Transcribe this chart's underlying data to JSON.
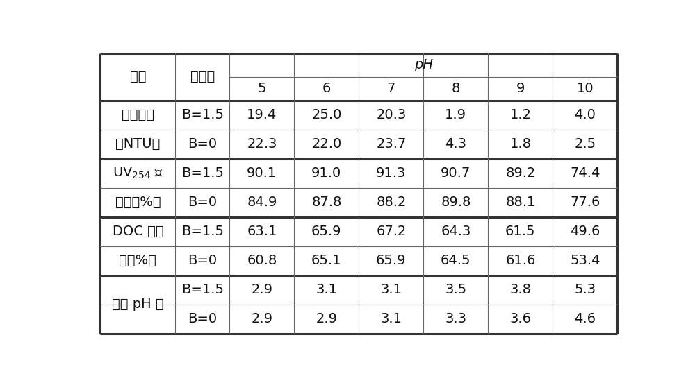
{
  "title_row": "pH",
  "col_header_label1": "指标",
  "col_header_label2": "絮凝剂",
  "ph_values": [
    "5",
    "6",
    "7",
    "8",
    "9",
    "10"
  ],
  "row_groups": [
    {
      "indicator_line1": "剩余浊度",
      "indicator_line2": "（NTU）",
      "uv_special": false,
      "rows": [
        {
          "coag": "B=1.5",
          "values": [
            "19.4",
            "25.0",
            "20.3",
            "1.9",
            "1.2",
            "4.0"
          ]
        },
        {
          "coag": "B=0",
          "values": [
            "22.3",
            "22.0",
            "23.7",
            "4.3",
            "1.8",
            "2.5"
          ]
        }
      ]
    },
    {
      "indicator_line1": "UV",
      "indicator_line1_sub": "254",
      "indicator_line1_suffix": " 去",
      "indicator_line2": "除率（%）",
      "uv_special": true,
      "rows": [
        {
          "coag": "B=1.5",
          "values": [
            "90.1",
            "91.0",
            "91.3",
            "90.7",
            "89.2",
            "74.4"
          ]
        },
        {
          "coag": "B=0",
          "values": [
            "84.9",
            "87.8",
            "88.2",
            "89.8",
            "88.1",
            "77.6"
          ]
        }
      ]
    },
    {
      "indicator_line1": "DOC 去除",
      "indicator_line2": "率（%）",
      "uv_special": false,
      "rows": [
        {
          "coag": "B=1.5",
          "values": [
            "63.1",
            "65.9",
            "67.2",
            "64.3",
            "61.5",
            "49.6"
          ]
        },
        {
          "coag": "B=0",
          "values": [
            "60.8",
            "65.1",
            "65.9",
            "64.5",
            "61.6",
            "53.4"
          ]
        }
      ]
    },
    {
      "indicator_line1": "出水 pH 值",
      "indicator_line2": "",
      "uv_special": false,
      "rows": [
        {
          "coag": "B=1.5",
          "values": [
            "2.9",
            "3.1",
            "3.1",
            "3.5",
            "3.8",
            "5.3"
          ]
        },
        {
          "coag": "B=0",
          "values": [
            "2.9",
            "2.9",
            "3.1",
            "3.3",
            "3.6",
            "4.6"
          ]
        }
      ]
    }
  ],
  "bg_color": "#ffffff",
  "outer_line_color": "#333333",
  "inner_line_color": "#666666",
  "text_color": "#111111",
  "font_size": 14
}
